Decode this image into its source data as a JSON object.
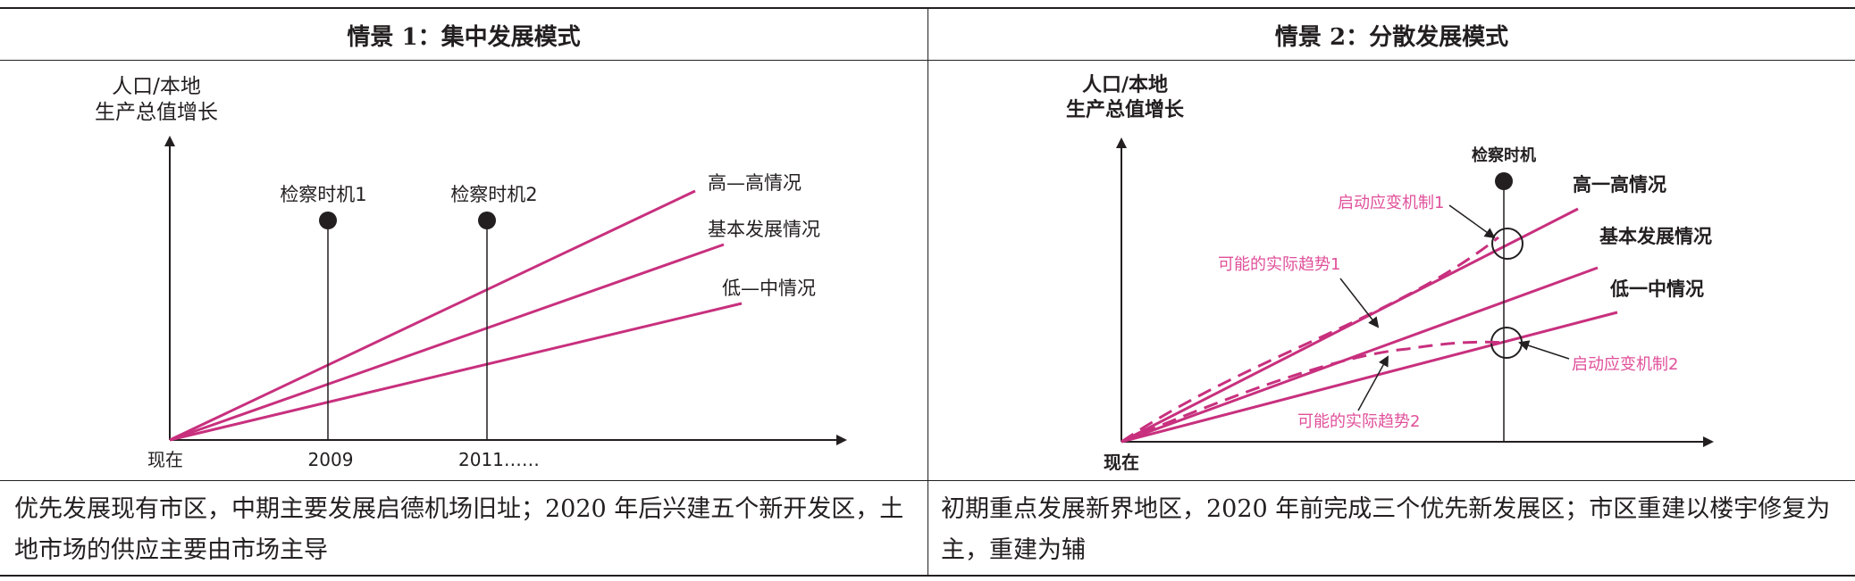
{
  "table": {
    "scenario1": {
      "title": "情景 1：集中发展模式",
      "description": "优先发展现有市区，中期主要发展启德机场旧址；2020 年后兴建五个新开发区，土地市场的供应主要由市场主导",
      "diagram": {
        "ylabel_line1": "人口/本地",
        "ylabel_line2": "生产总值增长",
        "origin_label": "现在",
        "tick1": "2009",
        "tick2": "2011……",
        "marker1": "检察时机1",
        "marker2": "检察时机2",
        "line_high": "高—高情况",
        "line_base": "基本发展情况",
        "line_low": "低—中情况"
      }
    },
    "scenario2": {
      "title": "情景 2：分散发展模式",
      "description": "初期重点发展新界地区，2020 年前完成三个优先新发展区；市区重建以楼宇修复为主，重建为辅",
      "diagram": {
        "ylabel_line1": "人口/本地",
        "ylabel_line2": "生产总值增长",
        "origin_label": "现在",
        "marker": "检察时机",
        "line_high": "高一高情况",
        "line_base": "基本发展情况",
        "line_low": "低一中情况",
        "trigger1": "启动应变机制1",
        "trigger2": "启动应变机制2",
        "trend1": "可能的实际趋势1",
        "trend2": "可能的实际趋势2"
      }
    }
  },
  "colors": {
    "line": "#c8307e",
    "annotation": "#e0509a",
    "ink": "#231f20"
  }
}
